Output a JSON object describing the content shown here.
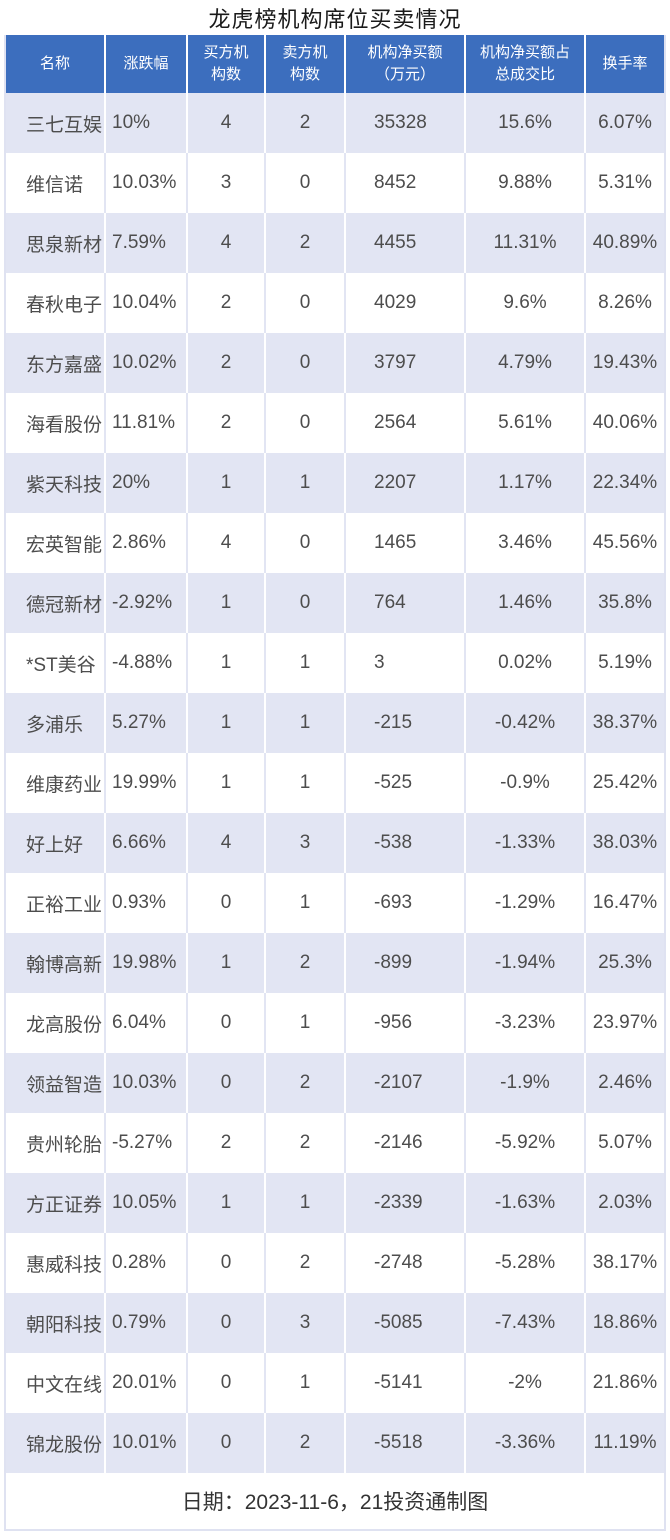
{
  "title": "龙虎榜机构席位买卖情况",
  "footer": "日期：2023-11-6，21投资通制图",
  "colors": {
    "header_bg": "#3c6ebe",
    "header_text": "#ffffff",
    "row_alt": "#e2e5f3",
    "row_white": "#ffffff",
    "body_text": "#4d4d4d",
    "title_text": "#1a1a1a",
    "footer_text": "#333333",
    "outer_border": "#dfe2f1"
  },
  "table": {
    "columns": [
      {
        "key": "name",
        "label": "名称"
      },
      {
        "key": "change-pct",
        "label": "涨跌幅"
      },
      {
        "key": "buy-inst-count",
        "label": "买方机\n构数"
      },
      {
        "key": "sell-inst-count",
        "label": "卖方机\n构数"
      },
      {
        "key": "net-buy-amount",
        "label": "机构净买额\n（万元）"
      },
      {
        "key": "net-buy-ratio",
        "label": "机构净买额占\n总成交比"
      },
      {
        "key": "turnover-rate",
        "label": "换手率"
      }
    ],
    "rows": [
      [
        "三七互娱",
        "10%",
        "4",
        "2",
        "35328",
        "15.6%",
        "6.07%"
      ],
      [
        "维信诺",
        "10.03%",
        "3",
        "0",
        "8452",
        "9.88%",
        "5.31%"
      ],
      [
        "思泉新材",
        "7.59%",
        "4",
        "2",
        "4455",
        "11.31%",
        "40.89%"
      ],
      [
        "春秋电子",
        "10.04%",
        "2",
        "0",
        "4029",
        "9.6%",
        "8.26%"
      ],
      [
        "东方嘉盛",
        "10.02%",
        "2",
        "0",
        "3797",
        "4.79%",
        "19.43%"
      ],
      [
        "海看股份",
        "11.81%",
        "2",
        "0",
        "2564",
        "5.61%",
        "40.06%"
      ],
      [
        "紫天科技",
        "20%",
        "1",
        "1",
        "2207",
        "1.17%",
        "22.34%"
      ],
      [
        "宏英智能",
        "2.86%",
        "4",
        "0",
        "1465",
        "3.46%",
        "45.56%"
      ],
      [
        "德冠新材",
        "-2.92%",
        "1",
        "0",
        "764",
        "1.46%",
        "35.8%"
      ],
      [
        "*ST美谷",
        "-4.88%",
        "1",
        "1",
        "3",
        "0.02%",
        "5.19%"
      ],
      [
        "多浦乐",
        "5.27%",
        "1",
        "1",
        "-215",
        "-0.42%",
        "38.37%"
      ],
      [
        "维康药业",
        "19.99%",
        "1",
        "1",
        "-525",
        "-0.9%",
        "25.42%"
      ],
      [
        "好上好",
        "6.66%",
        "4",
        "3",
        "-538",
        "-1.33%",
        "38.03%"
      ],
      [
        "正裕工业",
        "0.93%",
        "0",
        "1",
        "-693",
        "-1.29%",
        "16.47%"
      ],
      [
        "翰博高新",
        "19.98%",
        "1",
        "2",
        "-899",
        "-1.94%",
        "25.3%"
      ],
      [
        "龙高股份",
        "6.04%",
        "0",
        "1",
        "-956",
        "-3.23%",
        "23.97%"
      ],
      [
        "领益智造",
        "10.03%",
        "0",
        "2",
        "-2107",
        "-1.9%",
        "2.46%"
      ],
      [
        "贵州轮胎",
        "-5.27%",
        "2",
        "2",
        "-2146",
        "-5.92%",
        "5.07%"
      ],
      [
        "方正证券",
        "10.05%",
        "1",
        "1",
        "-2339",
        "-1.63%",
        "2.03%"
      ],
      [
        "惠威科技",
        "0.28%",
        "0",
        "2",
        "-2748",
        "-5.28%",
        "38.17%"
      ],
      [
        "朝阳科技",
        "0.79%",
        "0",
        "3",
        "-5085",
        "-7.43%",
        "18.86%"
      ],
      [
        "中文在线",
        "20.01%",
        "0",
        "1",
        "-5141",
        "-2%",
        "21.86%"
      ],
      [
        "锦龙股份",
        "10.01%",
        "0",
        "2",
        "-5518",
        "-3.36%",
        "11.19%"
      ]
    ]
  },
  "chart_data": {
    "type": "table",
    "title": "龙虎榜机构席位买卖情况",
    "columns": [
      "名称",
      "涨跌幅",
      "买方机构数",
      "卖方机构数",
      "机构净买额（万元）",
      "机构净买额占总成交比",
      "换手率"
    ],
    "rows": [
      [
        "三七互娱",
        "10%",
        4,
        2,
        35328,
        "15.6%",
        "6.07%"
      ],
      [
        "维信诺",
        "10.03%",
        3,
        0,
        8452,
        "9.88%",
        "5.31%"
      ],
      [
        "思泉新材",
        "7.59%",
        4,
        2,
        4455,
        "11.31%",
        "40.89%"
      ],
      [
        "春秋电子",
        "10.04%",
        2,
        0,
        4029,
        "9.6%",
        "8.26%"
      ],
      [
        "东方嘉盛",
        "10.02%",
        2,
        0,
        3797,
        "4.79%",
        "19.43%"
      ],
      [
        "海看股份",
        "11.81%",
        2,
        0,
        2564,
        "5.61%",
        "40.06%"
      ],
      [
        "紫天科技",
        "20%",
        1,
        1,
        2207,
        "1.17%",
        "22.34%"
      ],
      [
        "宏英智能",
        "2.86%",
        4,
        0,
        1465,
        "3.46%",
        "45.56%"
      ],
      [
        "德冠新材",
        "-2.92%",
        1,
        0,
        764,
        "1.46%",
        "35.8%"
      ],
      [
        "*ST美谷",
        "-4.88%",
        1,
        1,
        3,
        "0.02%",
        "5.19%"
      ],
      [
        "多浦乐",
        "5.27%",
        1,
        1,
        -215,
        "-0.42%",
        "38.37%"
      ],
      [
        "维康药业",
        "19.99%",
        1,
        1,
        -525,
        "-0.9%",
        "25.42%"
      ],
      [
        "好上好",
        "6.66%",
        4,
        3,
        -538,
        "-1.33%",
        "38.03%"
      ],
      [
        "正裕工业",
        "0.93%",
        0,
        1,
        -693,
        "-1.29%",
        "16.47%"
      ],
      [
        "翰博高新",
        "19.98%",
        1,
        2,
        -899,
        "-1.94%",
        "25.3%"
      ],
      [
        "龙高股份",
        "6.04%",
        0,
        1,
        -956,
        "-3.23%",
        "23.97%"
      ],
      [
        "领益智造",
        "10.03%",
        0,
        2,
        -2107,
        "-1.9%",
        "2.46%"
      ],
      [
        "贵州轮胎",
        "-5.27%",
        2,
        2,
        -2146,
        "-5.92%",
        "5.07%"
      ],
      [
        "方正证券",
        "10.05%",
        1,
        1,
        -2339,
        "-1.63%",
        "2.03%"
      ],
      [
        "惠威科技",
        "0.28%",
        0,
        2,
        -2748,
        "-5.28%",
        "38.17%"
      ],
      [
        "朝阳科技",
        "0.79%",
        0,
        3,
        -5085,
        "-7.43%",
        "18.86%"
      ],
      [
        "中文在线",
        "20.01%",
        0,
        1,
        -5141,
        "-2%",
        "21.86%"
      ],
      [
        "锦龙股份",
        "10.01%",
        0,
        2,
        -5518,
        "-3.36%",
        "11.19%"
      ]
    ],
    "caption": "日期：2023-11-6，21投资通制图",
    "legend_position": "none",
    "grid": "alternating-row-shading"
  }
}
